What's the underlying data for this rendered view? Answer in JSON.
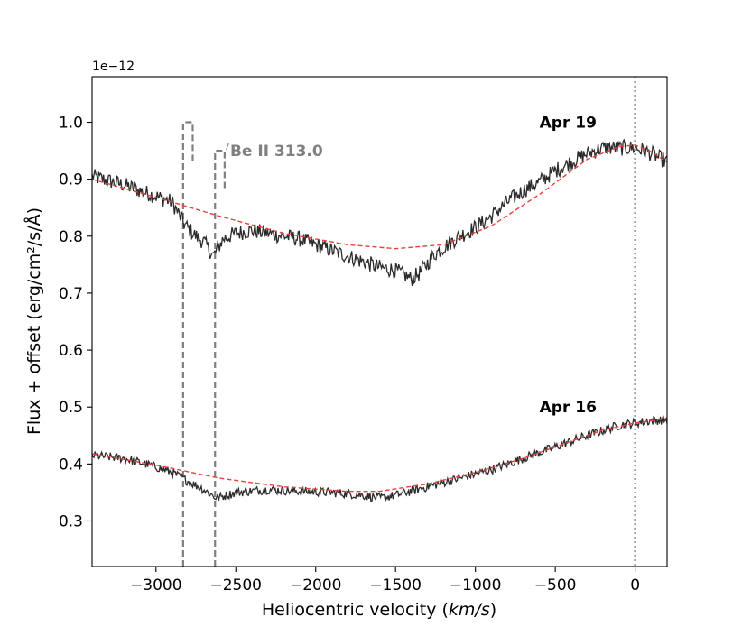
{
  "chart_data": {
    "type": "line",
    "offset_label": "1e−12",
    "xlabel_prefix": "Heliocentric velocity (",
    "xlabel_unit": "km/s",
    "xlabel_suffix": ")",
    "ylabel": "Flux + offset (erg/cm²/s/Å)",
    "xlim": [
      -3400,
      200
    ],
    "ylim": [
      0.22,
      1.08
    ],
    "xticks": [
      -3000,
      -2500,
      -2000,
      -1500,
      -1000,
      -500,
      0
    ],
    "xtick_labels": [
      "−3000",
      "−2500",
      "−2000",
      "−1500",
      "−1000",
      "−500",
      "0"
    ],
    "yticks": [
      0.3,
      0.4,
      0.5,
      0.6,
      0.7,
      0.8,
      0.9,
      1.0
    ],
    "ytick_labels": [
      "0.3",
      "0.4",
      "0.5",
      "0.6",
      "0.7",
      "0.8",
      "0.9",
      "1.0"
    ],
    "grid": false,
    "colors": {
      "spectrum": "#2b2b2b",
      "fit": "#e8413c",
      "marker": "#808080",
      "zero_line": "#808080"
    },
    "series": [
      {
        "name": "Apr 19",
        "anchors": [
          [
            -3400,
            0.905
          ],
          [
            -3200,
            0.89
          ],
          [
            -3000,
            0.87
          ],
          [
            -2900,
            0.86
          ],
          [
            -2820,
            0.82
          ],
          [
            -2750,
            0.8
          ],
          [
            -2700,
            0.79
          ],
          [
            -2640,
            0.765
          ],
          [
            -2580,
            0.795
          ],
          [
            -2500,
            0.805
          ],
          [
            -2400,
            0.81
          ],
          [
            -2300,
            0.805
          ],
          [
            -2200,
            0.8
          ],
          [
            -2100,
            0.795
          ],
          [
            -2000,
            0.785
          ],
          [
            -1900,
            0.775
          ],
          [
            -1800,
            0.765
          ],
          [
            -1700,
            0.755
          ],
          [
            -1600,
            0.745
          ],
          [
            -1500,
            0.74
          ],
          [
            -1400,
            0.725
          ],
          [
            -1350,
            0.735
          ],
          [
            -1250,
            0.77
          ],
          [
            -1100,
            0.8
          ],
          [
            -1000,
            0.815
          ],
          [
            -900,
            0.835
          ],
          [
            -800,
            0.86
          ],
          [
            -700,
            0.88
          ],
          [
            -600,
            0.895
          ],
          [
            -500,
            0.915
          ],
          [
            -400,
            0.93
          ],
          [
            -300,
            0.945
          ],
          [
            -200,
            0.955
          ],
          [
            -100,
            0.955
          ],
          [
            0,
            0.955
          ],
          [
            100,
            0.945
          ],
          [
            200,
            0.93
          ]
        ],
        "noise": 0.014,
        "fit": [
          [
            -3400,
            0.9
          ],
          [
            -3000,
            0.868
          ],
          [
            -2600,
            0.835
          ],
          [
            -2200,
            0.805
          ],
          [
            -1800,
            0.785
          ],
          [
            -1500,
            0.778
          ],
          [
            -1200,
            0.785
          ],
          [
            -900,
            0.818
          ],
          [
            -600,
            0.873
          ],
          [
            -300,
            0.935
          ],
          [
            -100,
            0.957
          ],
          [
            0,
            0.96
          ],
          [
            100,
            0.948
          ],
          [
            200,
            0.93
          ]
        ]
      },
      {
        "name": "Apr 16",
        "anchors": [
          [
            -3400,
            0.415
          ],
          [
            -3200,
            0.41
          ],
          [
            -3000,
            0.395
          ],
          [
            -2900,
            0.385
          ],
          [
            -2800,
            0.37
          ],
          [
            -2700,
            0.355
          ],
          [
            -2620,
            0.34
          ],
          [
            -2500,
            0.35
          ],
          [
            -2300,
            0.355
          ],
          [
            -2100,
            0.352
          ],
          [
            -1900,
            0.35
          ],
          [
            -1700,
            0.345
          ],
          [
            -1600,
            0.34
          ],
          [
            -1500,
            0.345
          ],
          [
            -1300,
            0.36
          ],
          [
            -1100,
            0.375
          ],
          [
            -900,
            0.39
          ],
          [
            -700,
            0.41
          ],
          [
            -500,
            0.43
          ],
          [
            -300,
            0.45
          ],
          [
            -100,
            0.468
          ],
          [
            0,
            0.472
          ],
          [
            100,
            0.476
          ],
          [
            200,
            0.478
          ]
        ],
        "noise": 0.008,
        "fit": [
          [
            -3400,
            0.418
          ],
          [
            -3000,
            0.398
          ],
          [
            -2600,
            0.375
          ],
          [
            -2200,
            0.36
          ],
          [
            -1800,
            0.352
          ],
          [
            -1600,
            0.352
          ],
          [
            -1300,
            0.365
          ],
          [
            -1000,
            0.385
          ],
          [
            -700,
            0.41
          ],
          [
            -400,
            0.44
          ],
          [
            -200,
            0.46
          ],
          [
            0,
            0.472
          ],
          [
            200,
            0.48
          ]
        ]
      }
    ],
    "annotations": [
      {
        "text": "Apr 19",
        "x": -420,
        "y": 1.0
      },
      {
        "text": "Apr 16",
        "x": -420,
        "y": 0.5
      }
    ],
    "doublet": {
      "label_sup": "7",
      "label": "Be II 313.0",
      "label_x": -2575,
      "label_y": 0.955,
      "lines": [
        {
          "x": -2830,
          "top": 1.0,
          "bottom": 0.22,
          "tick_x": -2770,
          "tick_bottom": 0.93
        },
        {
          "x": -2630,
          "top": 0.95,
          "bottom": 0.22,
          "tick_x": -2570,
          "tick_bottom": 0.88
        }
      ]
    },
    "vline": {
      "x": 0,
      "style": "dotted"
    }
  }
}
